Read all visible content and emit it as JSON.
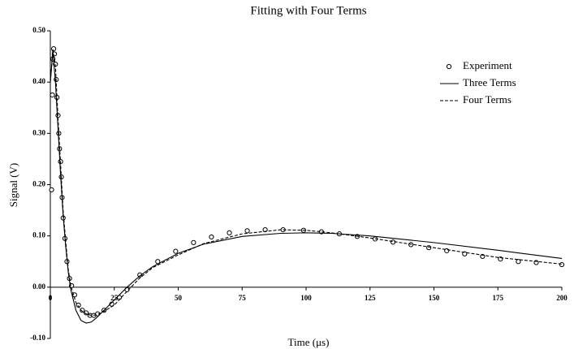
{
  "chart_data": {
    "type": "line",
    "title": "Fitting with Four Terms",
    "x_label": "Time (μs)",
    "y_label": "Signal (V)",
    "xlim": [
      0,
      200
    ],
    "xticks": [
      0,
      25,
      50,
      75,
      100,
      125,
      150,
      175,
      200
    ],
    "ylim": [
      -0.1,
      0.5
    ],
    "yticks": [
      {
        "value": -0.1,
        "label": "-0.10"
      },
      {
        "value": 0,
        "label": "0.00"
      },
      {
        "value": 0.1,
        "label": "0.10"
      },
      {
        "value": 0.2,
        "label": "0.20"
      },
      {
        "value": 0.3,
        "label": "0.30"
      },
      {
        "value": 0.4,
        "label": "0.40"
      },
      {
        "value": 0.5,
        "label": "0.50"
      }
    ],
    "legend": "upper-right",
    "series": [
      {
        "name": "Experiment",
        "style": "markers",
        "color": "#000000",
        "x": [
          0.5,
          0.8,
          1,
          1.3,
          1.6,
          2,
          2.3,
          2.6,
          3,
          3.3,
          3.6,
          4,
          4.3,
          4.6,
          5,
          5.7,
          6.5,
          7.5,
          8.3,
          9.5,
          11,
          12.5,
          14,
          15.5,
          17,
          18.5,
          21,
          24,
          27,
          30,
          35,
          42,
          49,
          56,
          63,
          70,
          77,
          84,
          91,
          99,
          106,
          113,
          120,
          127,
          134,
          141,
          148,
          155,
          162,
          169,
          176,
          183,
          190,
          200
        ],
        "values": [
          0.19,
          0.375,
          0.445,
          0.465,
          0.455,
          0.435,
          0.405,
          0.37,
          0.335,
          0.3,
          0.27,
          0.245,
          0.215,
          0.175,
          0.135,
          0.095,
          0.05,
          0.017,
          0.003,
          -0.015,
          -0.035,
          -0.045,
          -0.05,
          -0.055,
          -0.055,
          -0.052,
          -0.045,
          -0.033,
          -0.02,
          -0.005,
          0.024,
          0.05,
          0.07,
          0.087,
          0.098,
          0.106,
          0.11,
          0.112,
          0.112,
          0.111,
          0.108,
          0.104,
          0.099,
          0.094,
          0.088,
          0.083,
          0.077,
          0.071,
          0.065,
          0.06,
          0.055,
          0.05,
          0.048,
          0.044
        ]
      },
      {
        "name": "Three Terms",
        "style": "solid",
        "color": "#000000",
        "x": [
          0,
          1,
          2,
          3,
          4,
          5,
          6,
          7,
          8,
          10,
          12,
          14,
          16,
          18,
          20,
          25,
          30,
          35,
          40,
          50,
          60,
          75,
          90,
          100,
          110,
          125,
          150,
          175,
          200
        ],
        "values": [
          0.4,
          0.46,
          0.4,
          0.31,
          0.22,
          0.14,
          0.08,
          0.03,
          -0.005,
          -0.045,
          -0.065,
          -0.07,
          -0.068,
          -0.06,
          -0.05,
          -0.025,
          0.0,
          0.022,
          0.04,
          0.066,
          0.084,
          0.099,
          0.105,
          0.106,
          0.105,
          0.1,
          0.087,
          0.072,
          0.056
        ]
      },
      {
        "name": "Four Terms",
        "style": "dashed",
        "color": "#000000",
        "x": [
          0,
          1,
          2,
          3,
          4,
          5,
          6,
          7,
          8,
          10,
          12,
          14,
          16,
          18,
          20,
          25,
          30,
          35,
          40,
          50,
          60,
          75,
          90,
          100,
          110,
          125,
          150,
          175,
          200
        ],
        "values": [
          0.4,
          0.465,
          0.43,
          0.33,
          0.24,
          0.15,
          0.09,
          0.035,
          0.003,
          -0.03,
          -0.045,
          -0.052,
          -0.055,
          -0.054,
          -0.05,
          -0.035,
          -0.008,
          0.018,
          0.038,
          0.063,
          0.085,
          0.104,
          0.112,
          0.111,
          0.106,
          0.096,
          0.077,
          0.058,
          0.045
        ]
      }
    ]
  }
}
